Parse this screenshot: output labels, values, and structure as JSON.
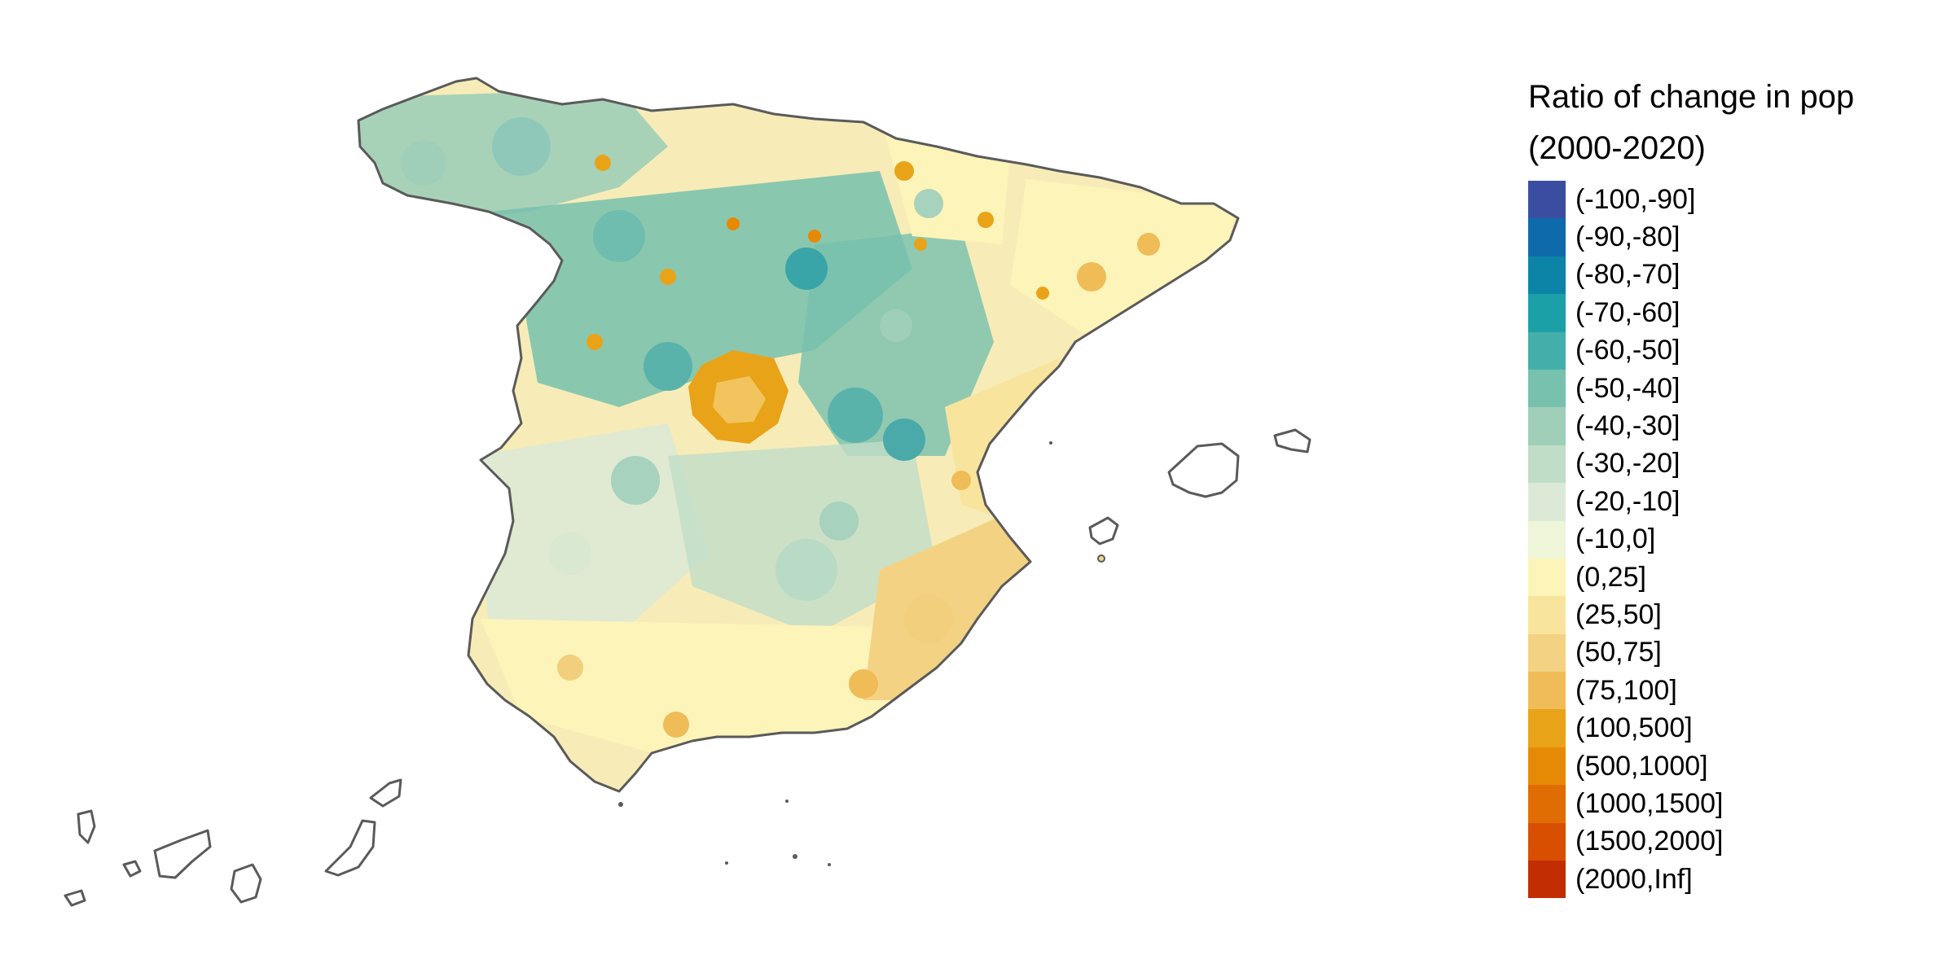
{
  "legend": {
    "title_line1": "Ratio of change in pop",
    "title_line2": "(2000-2020)",
    "items": [
      {
        "label": "(-100,-90]",
        "color": "#3a4da0"
      },
      {
        "label": "(-90,-80]",
        "color": "#0e6aaa"
      },
      {
        "label": "(-80,-70]",
        "color": "#0c84a8"
      },
      {
        "label": "(-70,-60]",
        "color": "#1ba0a8"
      },
      {
        "label": "(-60,-50]",
        "color": "#44afaa"
      },
      {
        "label": "(-50,-40]",
        "color": "#77c1ae"
      },
      {
        "label": "(-40,-30]",
        "color": "#9fcfb8"
      },
      {
        "label": "(-30,-20]",
        "color": "#c0ddc8"
      },
      {
        "label": "(-20,-10]",
        "color": "#dce9d6"
      },
      {
        "label": "(-10,0]",
        "color": "#eef5d8"
      },
      {
        "label": "(0,25]",
        "color": "#fcf4b8"
      },
      {
        "label": "(25,50]",
        "color": "#f9e49e"
      },
      {
        "label": "(50,75]",
        "color": "#f4d283"
      },
      {
        "label": "(75,100]",
        "color": "#efbc58"
      },
      {
        "label": "(100,500]",
        "color": "#e9a318"
      },
      {
        "label": "(500,1000]",
        "color": "#e68a05"
      },
      {
        "label": "(1000,1500]",
        "color": "#e06d04"
      },
      {
        "label": "(1500,2000]",
        "color": "#d94f02"
      },
      {
        "label": "(2000,Inf]",
        "color": "#c22d03"
      }
    ]
  },
  "map": {
    "regions": [
      {
        "id": "galicia-asturias",
        "class_label": "(-40,-30]"
      },
      {
        "id": "castilla-leon",
        "class_label": "(-50,-40]"
      },
      {
        "id": "madrid",
        "class_label": "(100,500]"
      },
      {
        "id": "aragon-teruel",
        "class_label": "(-50,-40]"
      },
      {
        "id": "extremadura",
        "class_label": "(-20,-10]"
      },
      {
        "id": "castilla-la-mancha",
        "class_label": "(-30,-20]"
      },
      {
        "id": "andalucia",
        "class_label": "(0,25]"
      },
      {
        "id": "murcia-alicante",
        "class_label": "(50,75]"
      },
      {
        "id": "valencia",
        "class_label": "(25,50]"
      },
      {
        "id": "cataluna",
        "class_label": "(0,25]"
      },
      {
        "id": "pais-vasco-navarra",
        "class_label": "(0,25]"
      },
      {
        "id": "balearic-islands",
        "class_label": "(50,75]"
      },
      {
        "id": "canary-islands",
        "class_label": "(25,50]"
      }
    ]
  }
}
